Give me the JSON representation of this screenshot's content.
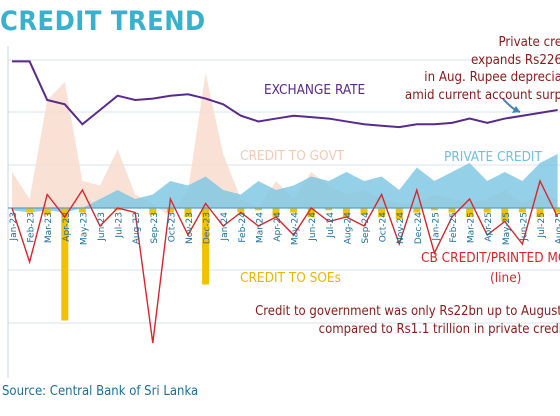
{
  "title": "CREDIT TREND",
  "source": "Source: Central Bank of Sri Lanka",
  "annotations": {
    "private_lines": [
      "Private cre",
      "expands Rs226",
      "in Aug. Rupee deprecia",
      "amid current account surp"
    ],
    "gov_lines": [
      "Credit to government was only Rs22bn up to August",
      "compared to Rs1.1 trillion in private credi"
    ]
  },
  "series_labels": {
    "exchange_rate": "EXCHANGE RATE",
    "credit_to_govt": "CREDIT TO GOVT",
    "private_credit": "PRIVATE CREDIT",
    "credit_to_soes": "CREDIT TO SOEs",
    "cb_credit": "CB CREDIT/PRINTED MONE",
    "cb_credit_sub": "(line)"
  },
  "colors": {
    "title": "#38b1cc",
    "exchange_rate": "#5a2a8a",
    "credit_to_govt": "#f8dccf",
    "private_credit": "#79c6e3",
    "credit_to_soes": "#f2c200",
    "cb_credit": "#d9262a",
    "annotation": "#8b1a1a",
    "source": "#1b6f9a"
  },
  "chart_data": {
    "type": "combo",
    "categories": [
      "Jan-23",
      "Feb-23",
      "Mar-23",
      "Apr-23",
      "May-23",
      "Jun-23",
      "Jul-23",
      "Aug-23",
      "Sep-23",
      "Oct-23",
      "Nov-23",
      "Dec-23",
      "Jan-24",
      "Feb-24",
      "Mar-24",
      "Apr-24",
      "May-24",
      "Jun-24",
      "Jul-24",
      "Aug-24",
      "Sep-24",
      "Oct-24",
      "Nov-24",
      "Dec-24",
      "Jan-25",
      "Feb-25",
      "Mar-25",
      "Apr-25",
      "May-25",
      "Jun-25",
      "Jul-25",
      "Aug-25"
    ],
    "visible_tick_labels": [
      "Jan-23",
      "Feb-23",
      "Mar-23",
      "Apr-23",
      "May-23",
      "Jun-23",
      "Jul-23",
      "Aug-23",
      "Sep-23",
      "Oct-23",
      "Nov-23",
      "Dec-23",
      "Jan-24",
      "Feb-24",
      "Mar-24",
      "Apr-24",
      "May-24",
      "Jun-24",
      "Jul-24",
      "Aug-24",
      "Sep-24",
      "Oct-24",
      "Nov-24",
      "Dec-24",
      "Jan-25",
      "Feb-25",
      "Mar-25",
      "Apr-25",
      "May-25",
      "Jun-25",
      "Jul-25",
      "Aug-25"
    ],
    "y_range": [
      -330,
      310
    ],
    "series": [
      {
        "name": "EXCHANGE RATE",
        "kind": "line",
        "scale": "secondary",
        "y_range": [
          300,
          370
        ],
        "values": [
          362,
          362,
          335,
          332,
          318,
          328,
          338,
          335,
          336,
          338,
          339,
          336,
          332,
          324,
          320,
          322,
          324,
          323,
          322,
          320,
          318,
          317,
          316,
          318,
          318,
          319,
          322,
          319,
          322,
          324,
          326,
          328
        ]
      },
      {
        "name": "CREDIT TO GOVT",
        "kind": "area",
        "values": [
          80,
          20,
          240,
          280,
          60,
          50,
          130,
          30,
          10,
          -20,
          40,
          300,
          120,
          20,
          0,
          60,
          20,
          80,
          50,
          30,
          40,
          20,
          10,
          10,
          30,
          20,
          10,
          20,
          40,
          10,
          30,
          20
        ]
      },
      {
        "name": "PRIVATE CREDIT",
        "kind": "area",
        "values": [
          -5,
          -10,
          -5,
          -10,
          0,
          20,
          40,
          20,
          30,
          60,
          50,
          70,
          40,
          30,
          60,
          40,
          50,
          70,
          60,
          80,
          60,
          70,
          40,
          90,
          60,
          80,
          100,
          60,
          80,
          60,
          100,
          120
        ]
      },
      {
        "name": "CREDIT TO SOEs",
        "kind": "bar",
        "values": [
          0,
          -10,
          -15,
          -250,
          -10,
          0,
          -5,
          0,
          -15,
          -10,
          -20,
          -170,
          0,
          -10,
          -5,
          -20,
          -10,
          -20,
          -5,
          -20,
          -15,
          -20,
          -25,
          -10,
          -5,
          -10,
          -20,
          -10,
          -30,
          -10,
          -20,
          -10
        ]
      },
      {
        "name": "CB CREDIT/PRINTED MONE",
        "kind": "line",
        "values": [
          0,
          -120,
          30,
          -20,
          40,
          -40,
          0,
          -10,
          -300,
          20,
          -60,
          10,
          -40,
          -10,
          -40,
          -20,
          -60,
          0,
          -30,
          -20,
          -40,
          30,
          -80,
          40,
          -100,
          -20,
          20,
          -60,
          -30,
          -80,
          60,
          -20
        ]
      }
    ]
  }
}
